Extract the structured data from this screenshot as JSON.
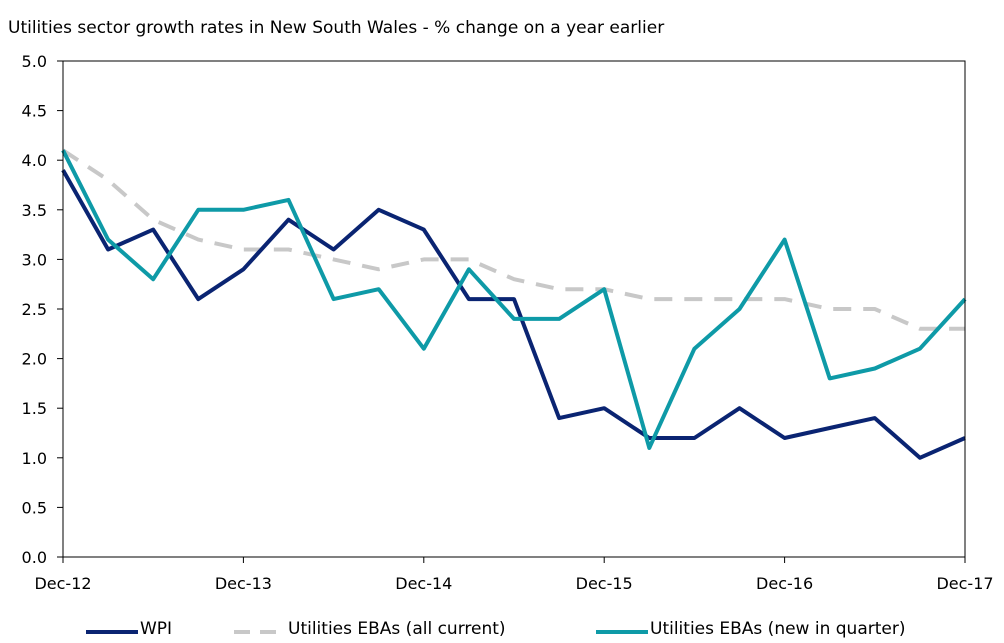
{
  "chart_data": {
    "type": "line",
    "title": "Utilities sector growth rates in New South Wales - % change on a year earlier",
    "xlabel": "",
    "ylabel": "",
    "ylim": [
      0,
      5
    ],
    "yticks": [
      "0.0",
      "0.5",
      "1.0",
      "1.5",
      "2.0",
      "2.5",
      "3.0",
      "3.5",
      "4.0",
      "4.5",
      "5.0"
    ],
    "x_tick_labels": [
      "Dec-12",
      "Dec-13",
      "Dec-14",
      "Dec-15",
      "Dec-16",
      "Dec-17"
    ],
    "x": [
      "Dec-12",
      "Mar-13",
      "Jun-13",
      "Sep-13",
      "Dec-13",
      "Mar-14",
      "Jun-14",
      "Sep-14",
      "Dec-14",
      "Mar-15",
      "Jun-15",
      "Sep-15",
      "Dec-15",
      "Mar-16",
      "Jun-16",
      "Sep-16",
      "Dec-16",
      "Mar-17",
      "Jun-17",
      "Sep-17",
      "Dec-17"
    ],
    "grid": false,
    "legend_position": "bottom",
    "series": [
      {
        "name": "WPI",
        "color": "#0a2472",
        "style": "solid",
        "values": [
          3.9,
          3.1,
          3.3,
          2.6,
          2.9,
          3.4,
          3.1,
          3.5,
          3.3,
          2.6,
          2.6,
          1.4,
          1.5,
          1.2,
          1.2,
          1.5,
          1.2,
          1.3,
          1.4,
          1.0,
          1.2
        ]
      },
      {
        "name": "Utilities EBAs (all current)",
        "color": "#c8c8c8",
        "style": "dashed",
        "values": [
          4.1,
          3.8,
          3.4,
          3.2,
          3.1,
          3.1,
          3.0,
          2.9,
          3.0,
          3.0,
          2.8,
          2.7,
          2.7,
          2.6,
          2.6,
          2.6,
          2.6,
          2.5,
          2.5,
          2.3,
          2.3
        ]
      },
      {
        "name": "Utilities EBAs (new in quarter)",
        "color": "#0e9aa7",
        "style": "solid",
        "values": [
          4.1,
          3.2,
          2.8,
          3.5,
          3.5,
          3.6,
          2.6,
          2.7,
          2.1,
          2.9,
          2.4,
          2.4,
          2.7,
          1.1,
          2.1,
          2.5,
          3.2,
          1.8,
          1.9,
          2.1,
          2.6
        ]
      }
    ]
  }
}
